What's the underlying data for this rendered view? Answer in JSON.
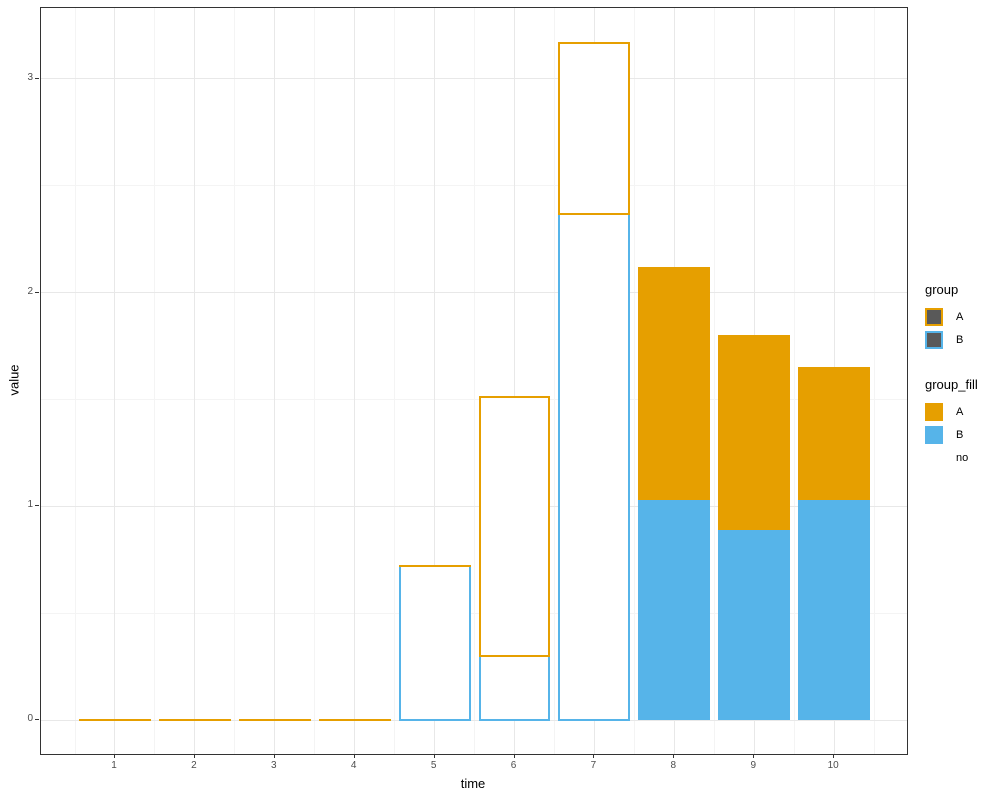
{
  "figure": {
    "background": "#ffffff"
  },
  "colors": {
    "group_a_orange": "#E69F00",
    "group_b_blue": "#56B4E9",
    "legend_key_gray": "#595959",
    "panel_border": "#333333",
    "grid_major": "#e8e8e8",
    "grid_minor": "#f4f4f4",
    "tick_text": "#4d4d4d"
  },
  "legend": {
    "groups": [
      {
        "title": "group",
        "entries": [
          {
            "label": "A",
            "key_fill": "#595959",
            "key_border": "#E69F00"
          },
          {
            "label": "B",
            "key_fill": "#595959",
            "key_border": "#56B4E9"
          }
        ]
      },
      {
        "title": "group_fill",
        "entries": [
          {
            "label": "A",
            "key_fill": "#E69F00",
            "key_border": ""
          },
          {
            "label": "B",
            "key_fill": "#56B4E9",
            "key_border": ""
          },
          {
            "label": "no",
            "key_fill": "",
            "key_border": ""
          }
        ]
      }
    ]
  },
  "chart_data": {
    "type": "bar",
    "stacked": true,
    "orientation": "vertical",
    "title": "",
    "xlabel": "time",
    "ylabel": "value",
    "x": [
      1,
      2,
      3,
      4,
      5,
      6,
      7,
      8,
      9,
      10
    ],
    "series": [
      {
        "name": "B",
        "color": "#56B4E9",
        "values": [
          0,
          0,
          0,
          0,
          0.72,
          0.3,
          2.37,
          1.03,
          0.89,
          1.03
        ]
      },
      {
        "name": "A",
        "color": "#E69F00",
        "values": [
          0,
          0,
          0,
          0,
          0,
          1.21,
          0.8,
          1.09,
          0.91,
          0.62
        ]
      }
    ],
    "stack_totals": [
      0,
      0,
      0,
      0,
      0.72,
      1.51,
      3.17,
      2.12,
      1.8,
      1.65
    ],
    "bar_style_per_x": [
      "outline",
      "outline",
      "outline",
      "outline",
      "outline",
      "outline",
      "outline",
      "fill",
      "fill",
      "fill"
    ],
    "bar_width": 0.9,
    "xlim": [
      0.074,
      10.912
    ],
    "ylim": [
      -0.159,
      3.332
    ],
    "x_major_ticks": [
      1,
      2,
      3,
      4,
      5,
      6,
      7,
      8,
      9,
      10
    ],
    "x_tick_labels": [
      "1",
      "2",
      "3",
      "4",
      "5",
      "6",
      "7",
      "8",
      "9",
      "10"
    ],
    "y_major_ticks": [
      0,
      1,
      2,
      3
    ],
    "y_tick_labels": [
      "0",
      "1",
      "2",
      "3"
    ],
    "x_minor_ticks": [
      0.5,
      1.5,
      2.5,
      3.5,
      4.5,
      5.5,
      6.5,
      7.5,
      8.5,
      9.5,
      10.5
    ],
    "y_minor_ticks": [
      0.5,
      1.5,
      2.5
    ],
    "grid": true,
    "legend_position": "right"
  }
}
